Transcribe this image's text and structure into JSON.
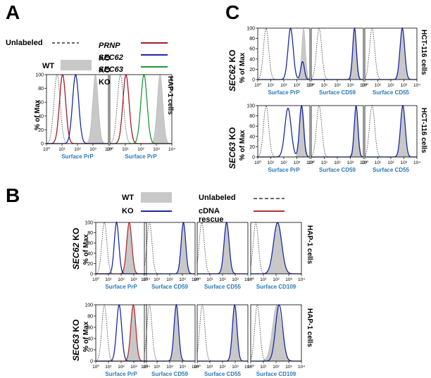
{
  "panels": {
    "a": "A",
    "b": "B",
    "c": "C"
  },
  "legend_a": {
    "unlabeled": "Unlabeled",
    "wt": "WT",
    "prnp": "PRNP",
    "sec62": "SEC62",
    "sec63": "SEC63",
    "ko": "KO"
  },
  "legend_b": {
    "wt": "WT",
    "ko": "KO",
    "unlabeled": "Unlabeled",
    "rescue": "cDNA rescue"
  },
  "axis": {
    "ylabel": "% of Max",
    "y_ticks": [
      "0",
      "20",
      "40",
      "60",
      "80",
      "100"
    ],
    "x_ticks": [
      "10⁰",
      "10¹",
      "10²",
      "10³",
      "10⁴"
    ]
  },
  "cell_lines": {
    "hap1": "HAP-1 cells",
    "hct116": "HCT-116 cells"
  },
  "row_labels": {
    "sec62": "SEC62",
    "sec63": "SEC63",
    "ko": "KO"
  },
  "x_labels": {
    "prp": "Surface PrP",
    "cd59": "Surface CD59",
    "cd55": "Surface CD55",
    "cd109": "Surface CD109"
  },
  "colors": {
    "wt_fill": "#c8c8c8",
    "ko": "#1a2aa6",
    "prnp": "#a01c2c",
    "sec63_green": "#1c9a3a",
    "rescue": "#b83030",
    "unlabeled": "#333333",
    "xlabel": "#2a7ab8"
  }
}
